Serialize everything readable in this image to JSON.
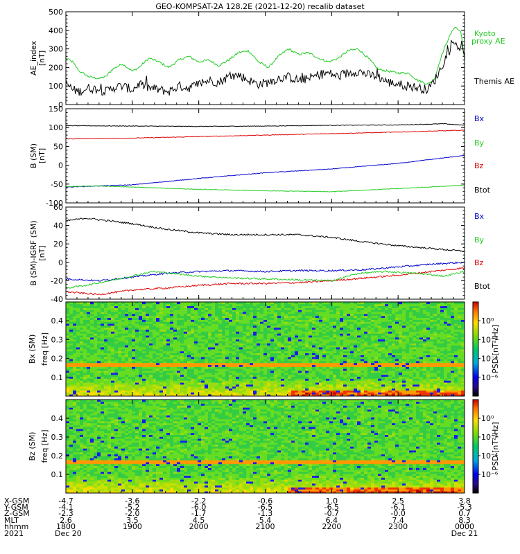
{
  "title": "GEO-KOMPSAT-2A 128.2E (2021-12-20) recalib dataset",
  "colors": {
    "black": "#000000",
    "red": "#dd0000",
    "green": "#22cc22",
    "blue": "#0000cc"
  },
  "chart_data": [
    {
      "type": "line",
      "ylabel": "AE_index",
      "yunit": "[nT]",
      "ylim": [
        0,
        500
      ],
      "yticks": [
        "0",
        "100",
        "200",
        "300",
        "400",
        "500"
      ],
      "xlim_hours": [
        18,
        24
      ],
      "series": [
        {
          "name": "Kyoto proxy AE",
          "color": "#22cc22",
          "x": [
            18.0,
            18.1,
            18.2,
            18.35,
            18.5,
            18.6,
            18.7,
            18.85,
            19.0,
            19.1,
            19.25,
            19.4,
            19.55,
            19.7,
            19.85,
            20.0,
            20.15,
            20.3,
            20.45,
            20.6,
            20.75,
            20.9,
            21.05,
            21.2,
            21.35,
            21.5,
            21.65,
            21.8,
            21.95,
            22.1,
            22.25,
            22.4,
            22.55,
            22.7,
            22.85,
            23.0,
            23.15,
            23.3,
            23.45,
            23.55,
            23.65,
            23.75,
            23.85,
            23.95,
            24.0
          ],
          "y": [
            250,
            230,
            180,
            150,
            140,
            150,
            190,
            220,
            180,
            200,
            250,
            230,
            200,
            240,
            260,
            230,
            240,
            210,
            240,
            280,
            290,
            230,
            200,
            260,
            300,
            270,
            280,
            250,
            230,
            250,
            290,
            300,
            250,
            190,
            180,
            170,
            170,
            130,
            110,
            140,
            260,
            350,
            420,
            390,
            230
          ]
        },
        {
          "name": "Themis AE",
          "color": "#000000",
          "x": [
            18.0,
            18.1,
            18.2,
            18.35,
            18.5,
            18.6,
            18.7,
            18.85,
            19.0,
            19.1,
            19.25,
            19.4,
            19.55,
            19.7,
            19.85,
            20.0,
            20.15,
            20.3,
            20.45,
            20.6,
            20.75,
            20.9,
            21.05,
            21.2,
            21.35,
            21.5,
            21.65,
            21.8,
            21.95,
            22.1,
            22.25,
            22.4,
            22.55,
            22.7,
            22.85,
            23.0,
            23.15,
            23.3,
            23.45,
            23.55,
            23.65,
            23.75,
            23.85,
            23.95,
            24.0
          ],
          "y": [
            120,
            80,
            70,
            90,
            80,
            70,
            90,
            100,
            80,
            110,
            90,
            80,
            70,
            100,
            90,
            110,
            130,
            120,
            150,
            160,
            130,
            110,
            120,
            140,
            150,
            130,
            140,
            160,
            170,
            150,
            170,
            180,
            160,
            150,
            120,
            110,
            100,
            90,
            80,
            130,
            200,
            280,
            330,
            300,
            250
          ]
        }
      ],
      "labels": [
        {
          "text": "Kyoto",
          "color": "#22cc22"
        },
        {
          "text": "proxy AE",
          "color": "#22cc22"
        },
        {
          "text": "Themis AE",
          "color": "#000000"
        }
      ]
    },
    {
      "type": "line",
      "ylabel": "B (SM)",
      "yunit": "[nT]",
      "ylim": [
        -100,
        150
      ],
      "yticks": [
        "-100",
        "-50",
        "0",
        "50",
        "100",
        "150"
      ],
      "xlim_hours": [
        18,
        24
      ],
      "series": [
        {
          "name": "Btot",
          "color": "#000000",
          "x": [
            18,
            19,
            20,
            21,
            22,
            23,
            23.7,
            24
          ],
          "y": [
            105,
            104,
            103,
            104,
            106,
            107,
            110,
            106
          ]
        },
        {
          "name": "Bz",
          "color": "#dd0000",
          "x": [
            18,
            19,
            20,
            21,
            22,
            23,
            24
          ],
          "y": [
            70,
            72,
            76,
            80,
            84,
            88,
            93
          ]
        },
        {
          "name": "Bx",
          "color": "#0000cc",
          "x": [
            18,
            19,
            20,
            21,
            22,
            23,
            24
          ],
          "y": [
            -58,
            -52,
            -35,
            -20,
            -10,
            5,
            26
          ]
        },
        {
          "name": "By",
          "color": "#22cc22",
          "x": [
            18,
            18.5,
            19,
            20,
            21,
            22,
            23,
            24
          ],
          "y": [
            -57,
            -55,
            -58,
            -64,
            -68,
            -70,
            -62,
            -53
          ]
        }
      ],
      "labels": [
        {
          "text": "Bx",
          "color": "#0000cc"
        },
        {
          "text": "By",
          "color": "#22cc22"
        },
        {
          "text": "Bz",
          "color": "#dd0000"
        },
        {
          "text": "Btot",
          "color": "#000000"
        }
      ]
    },
    {
      "type": "line",
      "ylabel": "B (SM)-IGRF (SM)",
      "yunit": "[nT]",
      "ylim": [
        -40,
        60
      ],
      "yticks": [
        "-40",
        "-20",
        "0",
        "20",
        "40",
        "60"
      ],
      "xlim_hours": [
        18,
        24
      ],
      "series": [
        {
          "name": "Btot",
          "color": "#000000",
          "x": [
            18,
            18.3,
            19,
            19.5,
            20,
            20.5,
            21,
            21.5,
            22,
            22.5,
            23,
            23.5,
            24
          ],
          "y": [
            45,
            48,
            42,
            36,
            32,
            30,
            30,
            30,
            27,
            22,
            18,
            15,
            12
          ]
        },
        {
          "name": "Bz",
          "color": "#dd0000",
          "x": [
            18,
            18.5,
            19,
            19.5,
            20,
            20.5,
            21,
            21.5,
            22,
            22.5,
            23,
            23.5,
            24
          ],
          "y": [
            -32,
            -35,
            -30,
            -28,
            -25,
            -23,
            -23,
            -22,
            -20,
            -17,
            -14,
            -10,
            -6
          ]
        },
        {
          "name": "Bx",
          "color": "#0000cc",
          "x": [
            18,
            18.5,
            19,
            19.5,
            20,
            20.5,
            21,
            21.5,
            22,
            22.5,
            23,
            23.5,
            24
          ],
          "y": [
            -18,
            -20,
            -16,
            -12,
            -10,
            -9,
            -10,
            -9,
            -9,
            -8,
            -5,
            -2,
            0
          ]
        },
        {
          "name": "By",
          "color": "#22cc22",
          "x": [
            18,
            18.3,
            18.8,
            19.3,
            19.6,
            20,
            20.5,
            21,
            21.5,
            22,
            22.4,
            22.8,
            23.3,
            23.7,
            24
          ],
          "y": [
            -28,
            -25,
            -18,
            -10,
            -12,
            -15,
            -17,
            -18,
            -19,
            -20,
            -12,
            -10,
            -12,
            -15,
            -10
          ]
        }
      ],
      "labels": [
        {
          "text": "Bx",
          "color": "#0000cc"
        },
        {
          "text": "By",
          "color": "#22cc22"
        },
        {
          "text": "Bz",
          "color": "#dd0000"
        },
        {
          "text": "Btot",
          "color": "#000000"
        }
      ]
    },
    {
      "type": "heatmap",
      "ylabel": "Bx (SM)",
      "ylabel2": "freq [Hz]",
      "ylim": [
        0,
        0.5
      ],
      "yticks": [
        "0.1",
        "0.2",
        "0.3",
        "0.4"
      ],
      "colorbar_label": "PSD [nT²/Hz]",
      "colorbar_ticks": [
        "10⁰",
        "10⁻²",
        "10⁻⁴",
        "10⁻⁶"
      ],
      "description_bands": {
        "line_freq_hz": 0.167
      }
    },
    {
      "type": "heatmap",
      "ylabel": "Bz (SM)",
      "ylabel2": "freq [Hz]",
      "ylim": [
        0,
        0.5
      ],
      "yticks": [
        "0.1",
        "0.2",
        "0.3",
        "0.4"
      ],
      "colorbar_label": "PSD [nT²/Hz]",
      "colorbar_ticks": [
        "10⁰",
        "10⁻²",
        "10⁻⁴",
        "10⁻⁶"
      ],
      "description_bands": {
        "line_freq_hz": 0.167
      }
    }
  ],
  "axis_table": {
    "row_labels": [
      "X-GSM",
      "Y-GSM",
      "Z-GSM",
      "MLT",
      "hhmm",
      "2021"
    ],
    "columns": [
      [
        "-4.7",
        "-4.1",
        "-2.3",
        "2.6",
        "1800",
        "Dec 20"
      ],
      [
        "-3.6",
        "-5.2",
        "-2.0",
        "3.5",
        "1900",
        ""
      ],
      [
        "-2.2",
        "-6.0",
        "-1.7",
        "4.5",
        "2000",
        ""
      ],
      [
        "-0.6",
        "-6.5",
        "-1.3",
        "5.4",
        "2100",
        ""
      ],
      [
        "1.0",
        "-6.5",
        "-0.7",
        "6.4",
        "2200",
        ""
      ],
      [
        "2.5",
        "-6.1",
        "-0.0",
        "7.4",
        "2300",
        ""
      ],
      [
        "3.8",
        "-5.3",
        "0.7",
        "8.3",
        "0000",
        "Dec 21"
      ]
    ]
  }
}
